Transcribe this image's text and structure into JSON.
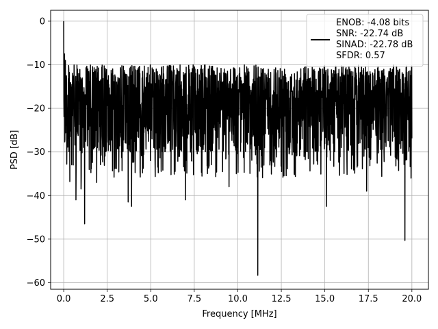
{
  "chart_data": {
    "type": "line",
    "title": "",
    "xlabel": "Frequency [MHz]",
    "ylabel": "PSD [dB]",
    "xlim": [
      -0.75,
      20.95
    ],
    "ylim": [
      -61.5,
      2.5
    ],
    "x_ticks": [
      0.0,
      2.5,
      5.0,
      7.5,
      10.0,
      12.5,
      15.0,
      17.5,
      20.0
    ],
    "x_tick_labels": [
      "0.0",
      "2.5",
      "5.0",
      "7.5",
      "10.0",
      "12.5",
      "15.0",
      "17.5",
      "20.0"
    ],
    "y_ticks": [
      0,
      -10,
      -20,
      -30,
      -40,
      -50,
      -60
    ],
    "y_tick_labels": [
      "0",
      "−10",
      "−20",
      "−30",
      "−40",
      "−50",
      "−60"
    ],
    "grid": true,
    "legend_position": "top-right",
    "series": [
      {
        "color": "#000000",
        "x_range": [
          0.0,
          20.0
        ],
        "n_points": 2048,
        "typical_range_db": [
          -30,
          -10
        ],
        "noise_ceiling_db": -7.5,
        "peaks": [
          {
            "x": 0.0,
            "y": 0.0
          },
          {
            "x": 0.05,
            "y": -7.5
          },
          {
            "x": 0.1,
            "y": -9.0
          }
        ],
        "dips": [
          {
            "x": 0.15,
            "y": -24.0
          },
          {
            "x": 0.35,
            "y": -36.8
          },
          {
            "x": 0.55,
            "y": -33.0
          },
          {
            "x": 0.7,
            "y": -41.0
          },
          {
            "x": 1.0,
            "y": -38.5
          },
          {
            "x": 1.2,
            "y": -46.5
          },
          {
            "x": 1.9,
            "y": -37.0
          },
          {
            "x": 3.7,
            "y": -41.5
          },
          {
            "x": 3.9,
            "y": -42.5
          },
          {
            "x": 7.0,
            "y": -41.0
          },
          {
            "x": 9.5,
            "y": -38.0
          },
          {
            "x": 11.15,
            "y": -58.3
          },
          {
            "x": 15.1,
            "y": -42.5
          },
          {
            "x": 17.4,
            "y": -39.0
          },
          {
            "x": 19.6,
            "y": -50.3
          },
          {
            "x": 19.95,
            "y": -36.0
          }
        ]
      }
    ],
    "legend": {
      "lines": [
        "ENOB: -4.08 bits",
        "SNR: -22.74 dB",
        "SINAD: -22.78 dB",
        "SFDR: 0.57"
      ]
    }
  }
}
